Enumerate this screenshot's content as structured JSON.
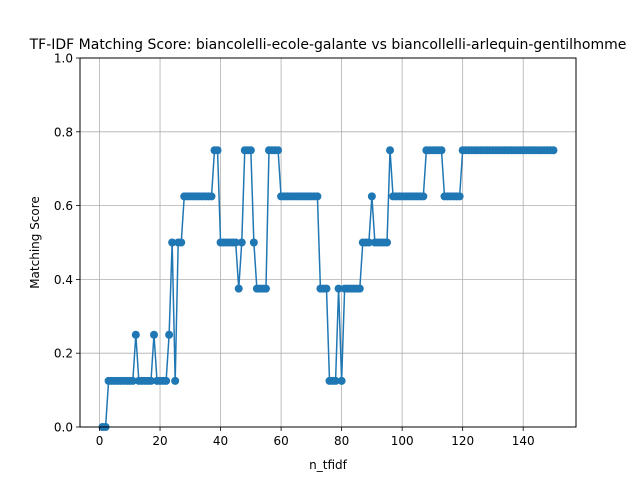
{
  "chart_data": {
    "type": "line",
    "title": "TF-IDF Matching Score: biancolelli-ecole-galante vs biancollelli-arlequin-gentilhomme",
    "xlabel": "n_tfidf",
    "ylabel": "Matching Score",
    "xlim": [
      -6.45,
      157.45
    ],
    "ylim": [
      0,
      1
    ],
    "xticks": [
      0,
      20,
      40,
      60,
      80,
      100,
      120,
      140
    ],
    "yticks": [
      0.0,
      0.2,
      0.4,
      0.6,
      0.8,
      1.0
    ],
    "xtick_labels": [
      "0",
      "20",
      "40",
      "60",
      "80",
      "100",
      "120",
      "140"
    ],
    "ytick_labels": [
      "0.0",
      "0.2",
      "0.4",
      "0.6",
      "0.8",
      "1.0"
    ],
    "grid": true,
    "marker": "circle",
    "color": "#1f77b4",
    "series": [
      {
        "x": [
          1,
          2,
          3,
          4,
          5,
          6,
          7,
          8,
          9,
          10,
          11,
          12,
          13,
          14,
          15,
          16,
          17,
          18,
          19,
          20,
          21,
          22,
          23,
          24,
          25,
          26,
          27,
          28,
          29,
          30,
          31,
          32,
          33,
          34,
          35,
          36,
          37,
          38,
          39,
          40,
          41,
          42,
          43,
          44,
          45,
          46,
          47,
          48,
          49,
          50,
          51,
          52,
          53,
          54,
          55,
          56,
          57,
          58,
          59,
          60,
          61,
          62,
          63,
          64,
          65,
          66,
          67,
          68,
          69,
          70,
          71,
          72,
          73,
          74,
          75,
          76,
          77,
          78,
          79,
          80,
          81,
          82,
          83,
          84,
          85,
          86,
          87,
          88,
          89,
          90,
          91,
          92,
          93,
          94,
          95,
          96,
          97,
          98,
          99,
          100,
          101,
          102,
          103,
          104,
          105,
          106,
          107,
          108,
          109,
          110,
          111,
          112,
          113,
          114,
          115,
          116,
          117,
          118,
          119,
          120,
          121,
          122,
          123,
          124,
          125,
          126,
          127,
          128,
          129,
          130,
          131,
          132,
          133,
          134,
          135,
          136,
          137,
          138,
          139,
          140,
          141,
          142,
          143,
          144,
          145,
          146,
          147,
          148,
          149,
          150
        ],
        "y": [
          0,
          0,
          0.125,
          0.125,
          0.125,
          0.125,
          0.125,
          0.125,
          0.125,
          0.125,
          0.125,
          0.25,
          0.125,
          0.125,
          0.125,
          0.125,
          0.125,
          0.25,
          0.125,
          0.125,
          0.125,
          0.125,
          0.25,
          0.5,
          0.125,
          0.5,
          0.5,
          0.625,
          0.625,
          0.625,
          0.625,
          0.625,
          0.625,
          0.625,
          0.625,
          0.625,
          0.625,
          0.75,
          0.75,
          0.5,
          0.5,
          0.5,
          0.5,
          0.5,
          0.5,
          0.375,
          0.5,
          0.75,
          0.75,
          0.75,
          0.5,
          0.375,
          0.375,
          0.375,
          0.375,
          0.75,
          0.75,
          0.75,
          0.75,
          0.625,
          0.625,
          0.625,
          0.625,
          0.625,
          0.625,
          0.625,
          0.625,
          0.625,
          0.625,
          0.625,
          0.625,
          0.625,
          0.375,
          0.375,
          0.375,
          0.125,
          0.125,
          0.125,
          0.375,
          0.125,
          0.375,
          0.375,
          0.375,
          0.375,
          0.375,
          0.375,
          0.5,
          0.5,
          0.5,
          0.625,
          0.5,
          0.5,
          0.5,
          0.5,
          0.5,
          0.75,
          0.625,
          0.625,
          0.625,
          0.625,
          0.625,
          0.625,
          0.625,
          0.625,
          0.625,
          0.625,
          0.625,
          0.75,
          0.75,
          0.75,
          0.75,
          0.75,
          0.75,
          0.625,
          0.625,
          0.625,
          0.625,
          0.625,
          0.625,
          0.75,
          0.75,
          0.75,
          0.75,
          0.75,
          0.75,
          0.75,
          0.75,
          0.75,
          0.75,
          0.75,
          0.75,
          0.75,
          0.75,
          0.75,
          0.75,
          0.75,
          0.75,
          0.75,
          0.75,
          0.75,
          0.75,
          0.75,
          0.75,
          0.75,
          0.75,
          0.75,
          0.75,
          0.75,
          0.75,
          0.75
        ]
      }
    ]
  }
}
